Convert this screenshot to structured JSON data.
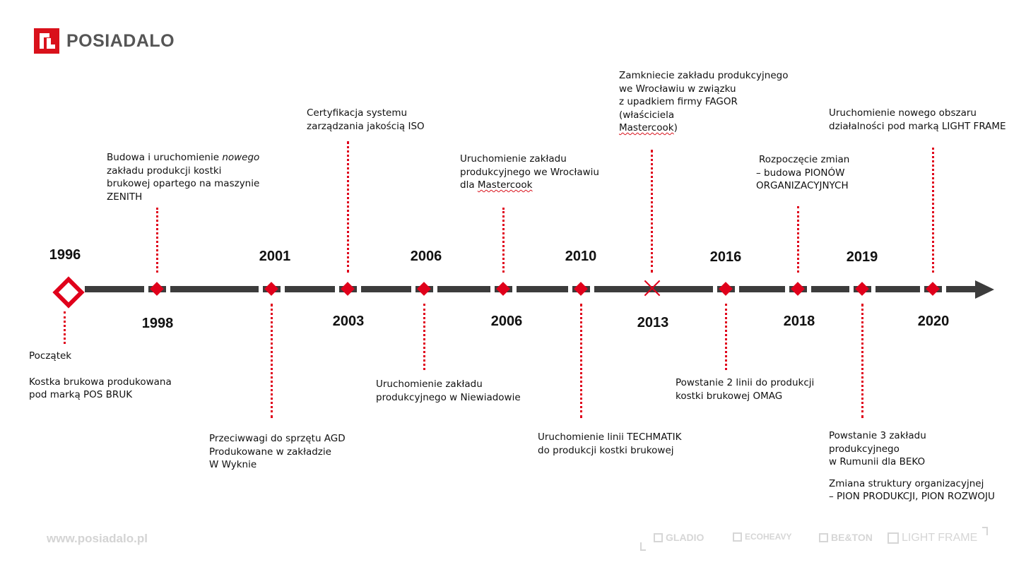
{
  "brand": {
    "name": "POSIADALO",
    "website": "www.posiadalo.pl"
  },
  "colors": {
    "accent": "#e0001b",
    "axis": "#3c3c3c",
    "text": "#111111",
    "footer": "#d4d4d4"
  },
  "timeline": {
    "events": [
      {
        "year": "1996",
        "lines": [
          "Początek",
          "",
          "Kostka brukowa produkowana",
          "pod marką POS BRUK"
        ]
      },
      {
        "year": "1998",
        "lines": [
          "Budowa i uruchomienie nowego",
          "zakładu produkcji kostki",
          "brukowej opartego na maszynie",
          "ZENITH"
        ]
      },
      {
        "year": "2001",
        "lines": [
          "Przeciwwagi do sprzętu AGD",
          "Produkowane w zakładzie",
          "W Wyknie"
        ]
      },
      {
        "year": "2003",
        "lines": [
          "Certyfikacja systemu",
          "zarządzania jakością ISO"
        ]
      },
      {
        "year": "2006",
        "lines": [
          "Uruchomienie zakładu",
          "produkcyjnego w Niewiadowie"
        ]
      },
      {
        "year": "2006",
        "lines": [
          "Uruchomienie zakładu",
          "produkcyjnego we Wrocławiu",
          "dla Mastercook"
        ]
      },
      {
        "year": "2010",
        "lines": [
          "Uruchomienie linii TECHMATIK",
          "do produkcji kostki brukowej"
        ]
      },
      {
        "year": "2013",
        "lines": [
          "Zamkniecie zakładu produkcyjnego",
          "we Wrocławiu w związku",
          "z upadkiem firmy FAGOR",
          "(właściciela",
          "Mastercook)"
        ]
      },
      {
        "year": "2016",
        "lines": [
          "Powstanie 2 linii do produkcji",
          "kostki brukowej OMAG"
        ]
      },
      {
        "year": "2018",
        "lines": [
          "Rozpoczęcie zmian",
          "– budowa PIONÓW",
          "ORGANIZACYJNYCH"
        ]
      },
      {
        "year": "2019",
        "lines": [
          "Powstanie 3 zakładu",
          "produkcyjnego",
          "w Rumunii dla BEKO",
          "",
          "Zmiana struktury organizacyjnej",
          "– PION PRODUKCJI, PION ROZWOJU"
        ]
      },
      {
        "year": "2020",
        "lines": [
          "Uruchomienie nowego obszaru",
          "działalności pod marką LIGHT FRAME"
        ]
      }
    ]
  },
  "footer": {
    "partner_brands": [
      {
        "name": "GLADIO",
        "icon": "gladio-icon"
      },
      {
        "name": "ECOHEAVY",
        "icon": "ecoheavy-icon"
      },
      {
        "name": "BE&TON",
        "icon": "beton-icon"
      },
      {
        "name": "LIGHT FRAME",
        "icon": "lightframe-icon"
      }
    ]
  }
}
